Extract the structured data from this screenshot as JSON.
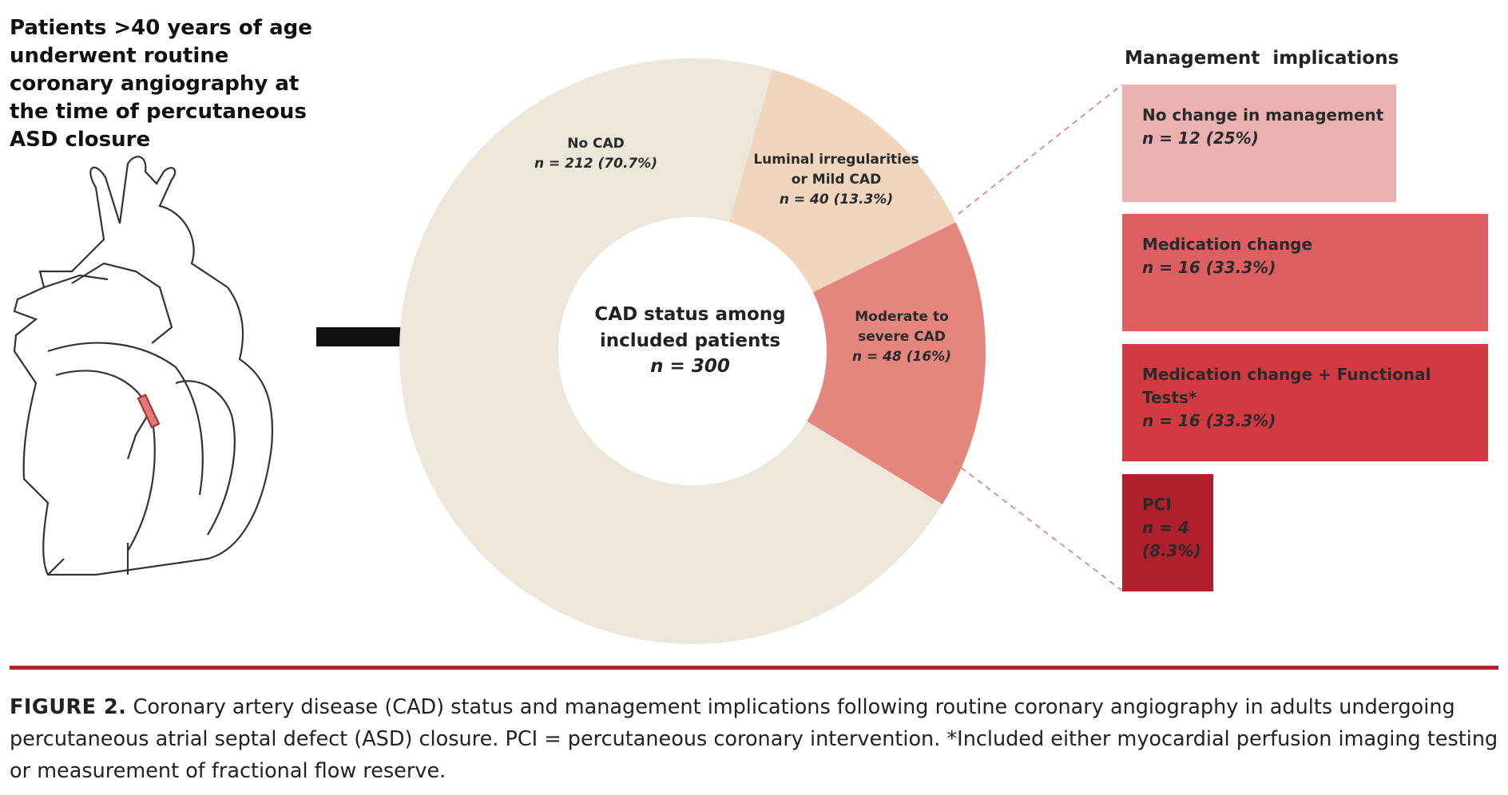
{
  "intro_text": "Patients >40 years of age underwent routine coronary angiography at the time of percutaneous ASD closure",
  "chart_data": [
    {
      "type": "donut",
      "center_title": "CAD status among\nincluded patients",
      "center_subtitle": "n = 300",
      "categories": [
        "No CAD",
        "Luminal irregularities\nor Mild CAD",
        "Moderate to\nsevere CAD"
      ],
      "values": [
        212,
        40,
        48
      ],
      "value_labels": [
        "n = 212 (70.7%)",
        "n = 40 (13.3%)",
        "n = 48 (16%)"
      ],
      "colors": [
        "#ede6da",
        "#f0d6bc",
        "#e5867e"
      ]
    },
    {
      "type": "bar",
      "title": "Management  implications",
      "orientation": "horizontal",
      "categories": [
        "No change in management",
        "Medication change",
        "Medication change + Functional Tests*",
        "PCI"
      ],
      "values": [
        12,
        16,
        16,
        4
      ],
      "value_labels": [
        "n = 12 (25%)",
        "n = 16 (33.3%)",
        "n = 16 (33.3%)",
        "n = 4 (8.3%)"
      ],
      "colors": [
        "#ebb0b0",
        "#de5f62",
        "#d23a41",
        "#b01f2b"
      ]
    }
  ],
  "caption": {
    "label": "FIGURE 2.",
    "text": "Coronary artery disease (CAD) status and management implications following routine coronary angiography in adults undergoing percutaneous atrial septal defect (ASD) closure. PCI = percutaneous coronary intervention. *Included either myocardial perfusion imaging testing or measurement of fractional flow reserve."
  }
}
